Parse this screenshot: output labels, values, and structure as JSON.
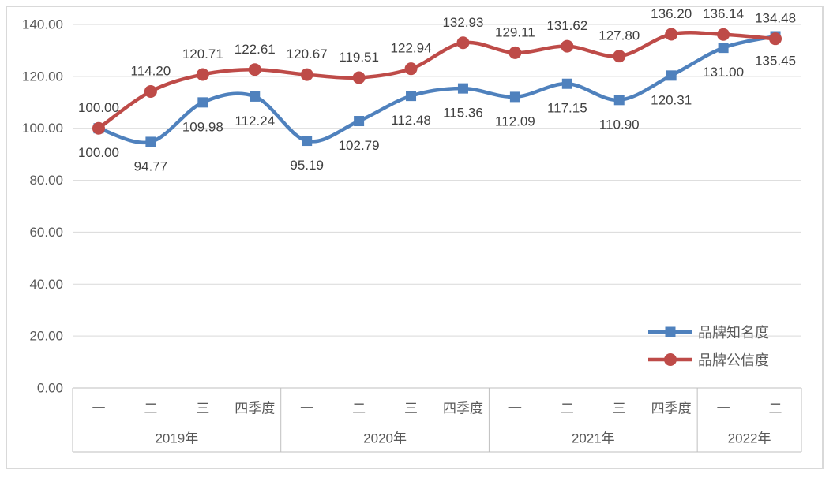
{
  "chart_data": {
    "type": "line",
    "smoothed": true,
    "grid": true,
    "legend_position": "right-middle",
    "x_quarter_labels": [
      "一",
      "二",
      "三",
      "四季度",
      "一",
      "二",
      "三",
      "四季度",
      "一",
      "二",
      "三",
      "四季度",
      "一",
      "二"
    ],
    "year_groups": [
      {
        "label": "2019年",
        "count": 4
      },
      {
        "label": "2020年",
        "count": 4
      },
      {
        "label": "2021年",
        "count": 4
      },
      {
        "label": "2022年",
        "count": 2
      }
    ],
    "y_axis": {
      "min": 0,
      "max": 140,
      "step": 20,
      "tick_labels": [
        "0.00",
        "20.00",
        "40.00",
        "60.00",
        "80.00",
        "100.00",
        "120.00",
        "140.00"
      ]
    },
    "series": [
      {
        "key": "brand-awareness",
        "name": "品牌知名度",
        "color": "#4F81BD",
        "marker": "square",
        "label_position": "below",
        "values": [
          100.0,
          94.77,
          109.98,
          112.24,
          95.19,
          102.79,
          112.48,
          115.36,
          112.09,
          117.15,
          110.9,
          120.31,
          131.0,
          135.45
        ]
      },
      {
        "key": "brand-credibility",
        "name": "品牌公信度",
        "color": "#BE4B48",
        "marker": "circle",
        "label_position": "above",
        "values": [
          100.0,
          114.2,
          120.71,
          122.61,
          120.67,
          119.51,
          122.94,
          132.93,
          129.11,
          131.62,
          127.8,
          136.2,
          136.14,
          134.48
        ]
      }
    ],
    "colors": {
      "gridline": "#D9D9D9",
      "axis_table_line": "#BFBFBF",
      "outer_border": "#D9D9D9",
      "axis_text": "#595959",
      "data_label_text": "#404040"
    }
  }
}
